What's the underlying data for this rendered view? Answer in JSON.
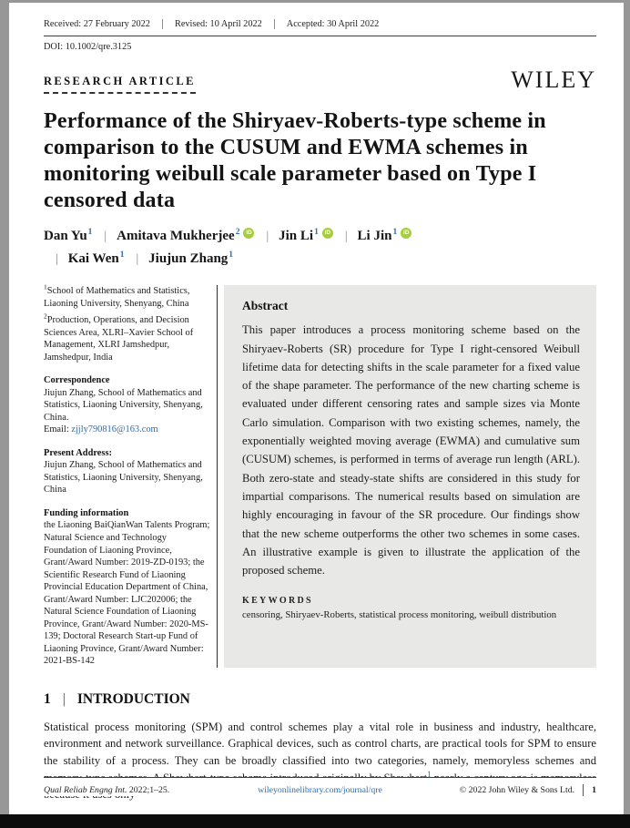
{
  "meta": {
    "received": "Received: 27 February 2022",
    "revised": "Revised: 10 April 2022",
    "accepted": "Accepted: 30 April 2022",
    "doi": "DOI: 10.1002/qre.3125"
  },
  "header": {
    "article_type": "RESEARCH ARTICLE",
    "logo": "WILEY"
  },
  "title": "Performance of the Shiryaev-Roberts-type scheme in comparison to the CUSUM and EWMA schemes in monitoring weibull scale parameter based on Type I censored data",
  "authors": [
    {
      "name": "Dan Yu",
      "sup": "1",
      "orcid": false
    },
    {
      "name": "Amitava Mukherjee",
      "sup": "2",
      "orcid": true
    },
    {
      "name": "Jin Li",
      "sup": "1",
      "orcid": true
    },
    {
      "name": "Li Jin",
      "sup": "1",
      "orcid": true
    },
    {
      "name": "Kai Wen",
      "sup": "1",
      "orcid": false
    },
    {
      "name": "Jiujun Zhang",
      "sup": "1",
      "orcid": false
    }
  ],
  "orcid_icon_label": "iD",
  "affiliations": [
    {
      "sup": "1",
      "text": "School of Mathematics and Statistics, Liaoning University, Shenyang, China"
    },
    {
      "sup": "2",
      "text": "Production, Operations, and Decision Sciences Area, XLRI–Xavier School of Management, XLRI Jamshedpur, Jamshedpur, India"
    }
  ],
  "correspondence": {
    "heading": "Correspondence",
    "body": "Jiujun Zhang, School of Mathematics and Statistics, Liaoning University, Shenyang, China.",
    "email_label": "Email: ",
    "email": "zjjly790816@163.com"
  },
  "present_address": {
    "heading": "Present Address:",
    "body": "Jiujun Zhang, School of Mathematics and Statistics, Liaoning University, Shenyang, China"
  },
  "funding": {
    "heading": "Funding information",
    "body": "the Liaoning BaiQianWan Talents Program; Natural Science and Technology Foundation of Liaoning Province, Grant/Award Number: 2019-ZD-0193; the Scientific Research Fund of Liaoning Provincial Education Department of China, Grant/Award Number: LJC202006; the Natural Science Foundation of Liaoning Province, Grant/Award Number: 2020-MS-139; Doctoral Research Start-up Fund of Liaoning Province, Grant/Award Number: 2021-BS-142"
  },
  "abstract": {
    "heading": "Abstract",
    "body": "This paper introduces a process monitoring scheme based on the Shiryaev-Roberts (SR) procedure for Type I right-censored Weibull lifetime data for detecting shifts in the scale parameter for a fixed value of the shape parameter. The performance of the new charting scheme is evaluated under different censoring rates and sample sizes via Monte Carlo simulation. Comparison with two existing schemes, namely, the exponentially weighted moving average (EWMA) and cumulative sum (CUSUM) schemes, is performed in terms of average run length (ARL). Both zero-state and steady-state shifts are considered in this study for impartial comparisons. The numerical results based on simulation are highly encouraging in favour of the SR procedure. Our findings show that the new scheme outperforms the other two schemes in some cases. An illustrative example is given to illustrate the application of the proposed scheme.",
    "keywords_heading": "KEYWORDS",
    "keywords": "censoring, Shiryaev-Roberts, statistical process monitoring, weibull distribution"
  },
  "introduction": {
    "number": "1",
    "divider": "|",
    "heading": "INTRODUCTION",
    "para_before_cite": "Statistical process monitoring (SPM) and control schemes play a vital role in business and industry, healthcare, environment and network surveillance. Graphical devices, such as control charts, are practical tools for SPM to ensure the stability of a process. They can be broadly classified into two categories, namely, memoryless schemes and memory-type schemes. A Shewhart-type scheme introduced originally by Shewhart",
    "citation": "1",
    "para_after_cite": " nearly a century ago is memoryless because it uses only"
  },
  "footer": {
    "journal": "Qual Reliab Engng Int.",
    "pages": " 2022;1–25.",
    "link": "wileyonlinelibrary.com/journal/qre",
    "copyright": "© 2022 John Wiley & Sons Ltd.",
    "page_number": "1"
  },
  "colors": {
    "link_blue": "#2f6ea8",
    "orcid_green": "#a6ce39",
    "abstract_bg": "#e8e8e6"
  }
}
